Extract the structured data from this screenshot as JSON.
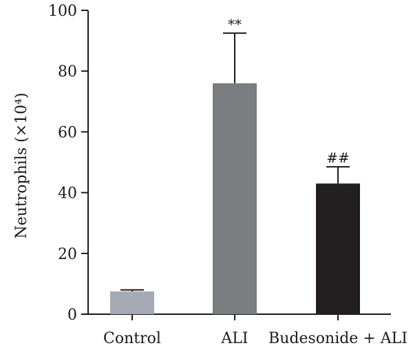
{
  "chart_data": {
    "type": "bar",
    "categories": [
      "Control",
      "ALI",
      "Budesonide + ALI"
    ],
    "values": [
      7.5,
      76,
      43
    ],
    "errors": [
      0.5,
      16.5,
      5.5
    ],
    "annotations": [
      "",
      "**",
      "##"
    ],
    "colors": [
      "#a6aab4",
      "#7b7c80",
      "#231f20"
    ],
    "ylabel": "Neutrophils (×10⁴)",
    "yticks": [
      0,
      20,
      40,
      60,
      80,
      100
    ],
    "ylim": [
      0,
      100
    ],
    "grid": false
  }
}
